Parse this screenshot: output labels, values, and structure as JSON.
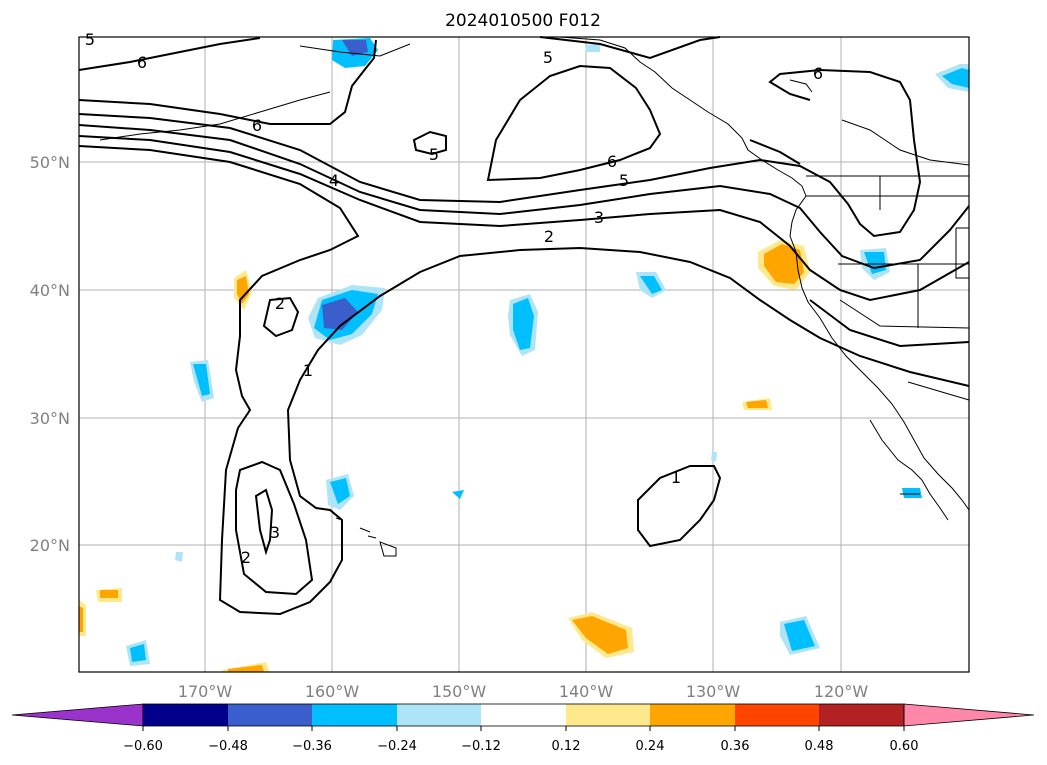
{
  "title": "2024010500 F012",
  "map": {
    "lat_labels": [
      "50°N",
      "40°N",
      "30°N",
      "20°N"
    ],
    "lon_labels": [
      "170°W",
      "160°W",
      "150°W",
      "140°W",
      "130°W",
      "120°W"
    ],
    "contour_labels": [
      "6",
      "6",
      "5",
      "5",
      "4",
      "6",
      "5",
      "3",
      "2",
      "2",
      "1",
      "3",
      "2",
      "1",
      "5",
      "6"
    ],
    "colors": {
      "coast": "#000000",
      "contour": "#000000",
      "grid": "#b0b0b0"
    }
  },
  "colorbar": {
    "ticks": [
      "−0.60",
      "−0.48",
      "−0.36",
      "−0.24",
      "−0.12",
      "0.12",
      "0.24",
      "0.36",
      "0.48",
      "0.60"
    ],
    "colors": [
      "#9933cc",
      "#00008b",
      "#3a5fcd",
      "#00bfff",
      "#aee4f8",
      "#ffffff",
      "#ffe98c",
      "#ffa500",
      "#ff4500",
      "#b22222",
      "#ff88aa"
    ]
  }
}
